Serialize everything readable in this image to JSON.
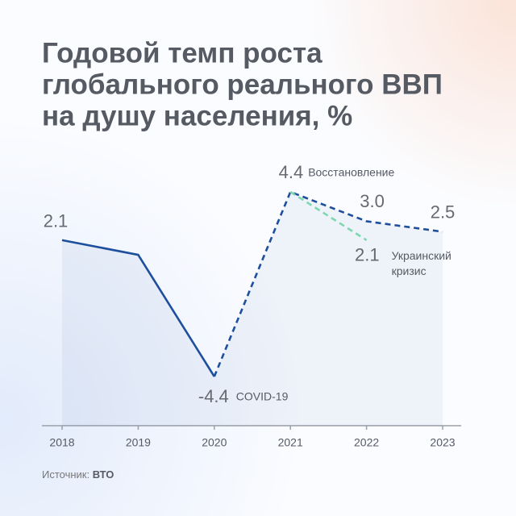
{
  "chart_data": {
    "type": "line",
    "title": [
      "Годовой темп роста",
      "глобального реального ВВП",
      "на душу населения, %"
    ],
    "categories": [
      "2018",
      "2019",
      "2020",
      "2021",
      "2022",
      "2023"
    ],
    "series": [
      {
        "color": "#1d4f9c",
        "values": [
          2.1,
          1.4,
          -4.4,
          4.4,
          3.0,
          2.5
        ],
        "value_labels": [
          "2.1",
          null,
          "-4.4",
          "4.4",
          "3.0",
          "2.5"
        ],
        "annotations": [
          null,
          null,
          "COVID-19",
          "Восстановление",
          null,
          null
        ],
        "segment_styles": [
          "solid",
          "solid",
          "dashed",
          "dashed",
          "dashed"
        ],
        "area": true
      },
      {
        "color": "#7fd6b0",
        "values": [
          null,
          null,
          null,
          4.4,
          2.1,
          null
        ],
        "value_labels": [
          null,
          null,
          null,
          null,
          "2.1",
          null
        ],
        "annotations": [
          null,
          null,
          null,
          null,
          "Украинский кризис",
          null
        ],
        "segment_styles": [
          null,
          null,
          null,
          "dashed",
          null
        ],
        "area": false
      }
    ],
    "source_label": "Источник:",
    "source": "ВТО"
  }
}
